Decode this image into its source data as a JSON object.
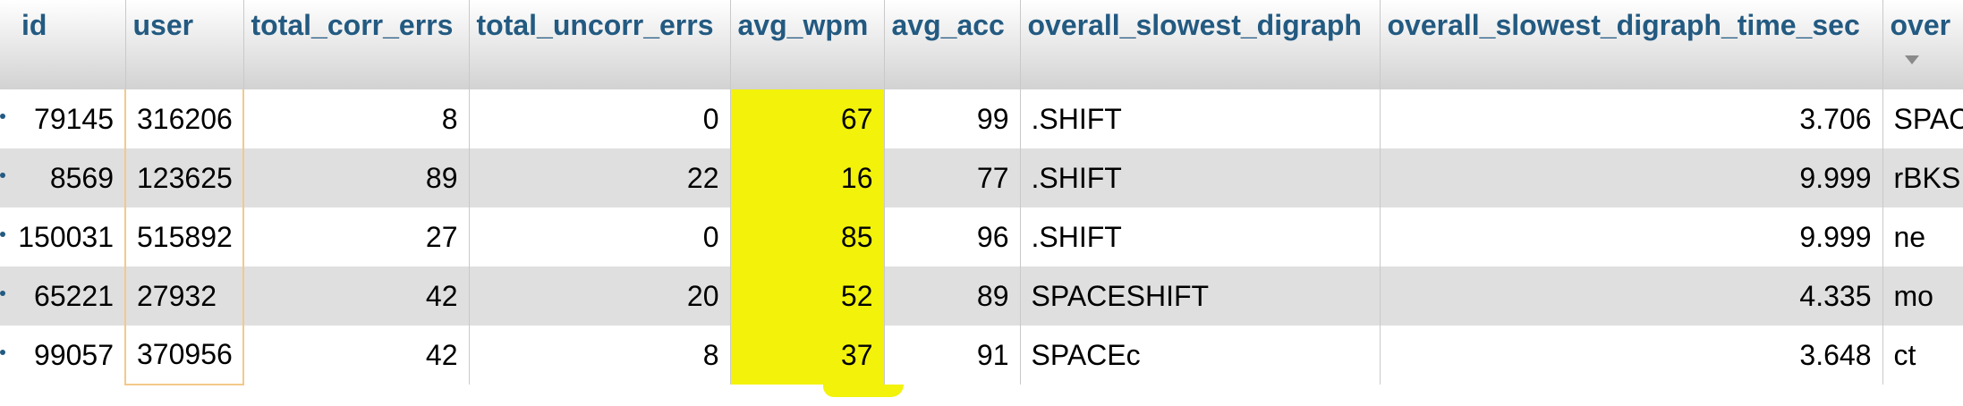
{
  "table": {
    "columns": [
      "id",
      "user",
      "total_corr_errs",
      "total_uncorr_errs",
      "avg_wpm",
      "avg_acc",
      "overall_slowest_digraph",
      "overall_slowest_digraph_time_sec",
      "over"
    ],
    "rows": [
      {
        "id": "79145",
        "user": "316206",
        "total_corr_errs": "8",
        "total_uncorr_errs": "0",
        "avg_wpm": "67",
        "avg_acc": "99",
        "overall_slowest_digraph": ".SHIFT",
        "overall_slowest_digraph_time_sec": "3.706",
        "over": "SPAC"
      },
      {
        "id": "8569",
        "user": "123625",
        "total_corr_errs": "89",
        "total_uncorr_errs": "22",
        "avg_wpm": "16",
        "avg_acc": "77",
        "overall_slowest_digraph": ".SHIFT",
        "overall_slowest_digraph_time_sec": "9.999",
        "over": "rBKS"
      },
      {
        "id": "150031",
        "user": "515892",
        "total_corr_errs": "27",
        "total_uncorr_errs": "0",
        "avg_wpm": "85",
        "avg_acc": "96",
        "overall_slowest_digraph": ".SHIFT",
        "overall_slowest_digraph_time_sec": "9.999",
        "over": "ne"
      },
      {
        "id": "65221",
        "user": "27932",
        "total_corr_errs": "42",
        "total_uncorr_errs": "20",
        "avg_wpm": "52",
        "avg_acc": "89",
        "overall_slowest_digraph": "SPACESHIFT",
        "overall_slowest_digraph_time_sec": "4.335",
        "over": "mo"
      },
      {
        "id": "99057",
        "user": "370956",
        "total_corr_errs": "42",
        "total_uncorr_errs": "8",
        "avg_wpm": "37",
        "avg_acc": "91",
        "overall_slowest_digraph": "SPACEc",
        "overall_slowest_digraph_time_sec": "3.648",
        "over": "ct"
      }
    ]
  },
  "colors": {
    "header_text": "#235a81",
    "highlight": "#f2f20a",
    "row_even": "#dfdfdf",
    "user_column_outline": "#f3c98b"
  },
  "icons": {
    "sort": "sort-arrow-down-icon"
  }
}
